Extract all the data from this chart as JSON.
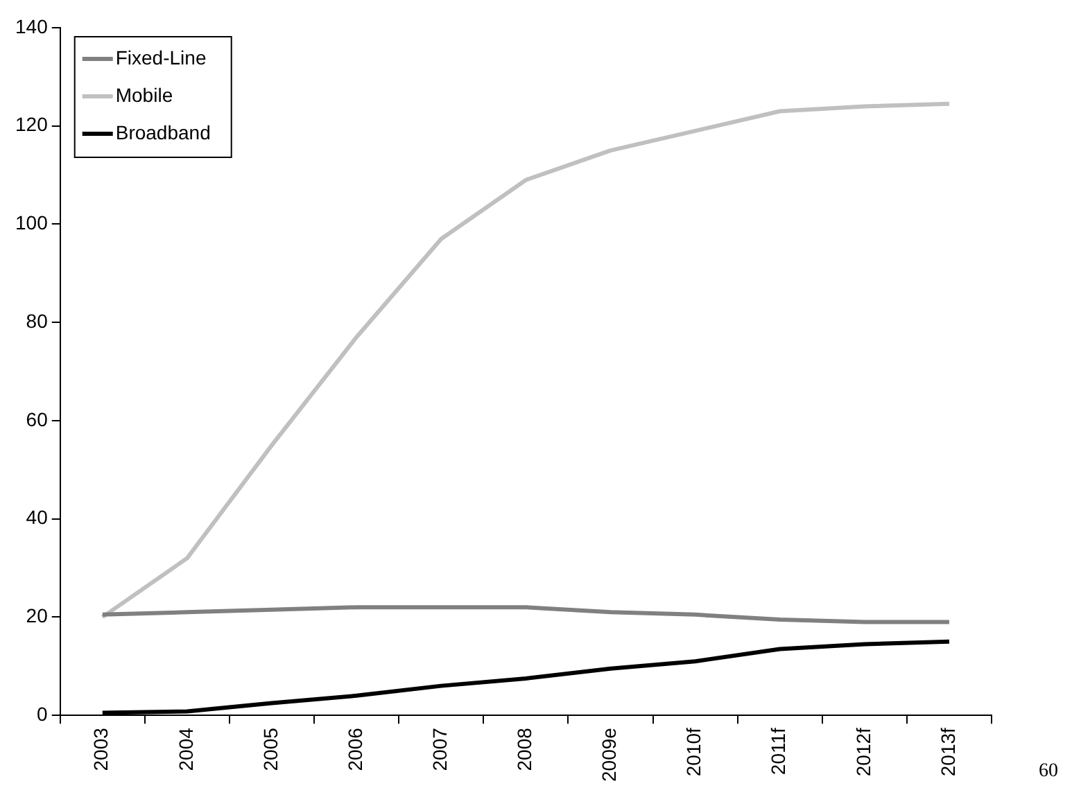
{
  "chart_data": {
    "type": "line",
    "categories": [
      "2003",
      "2004",
      "2005",
      "2006",
      "2007",
      "2008",
      "2009e",
      "2010f",
      "2011f",
      "2012f",
      "2013f"
    ],
    "series": [
      {
        "name": "Fixed-Line",
        "color": "#808080",
        "values": [
          20.5,
          21,
          21.5,
          22,
          22,
          22,
          21,
          20.5,
          19.5,
          19,
          19
        ]
      },
      {
        "name": "Mobile",
        "color": "#c0c0c0",
        "values": [
          20,
          32,
          55,
          77,
          97,
          109,
          115,
          119,
          123,
          124,
          124.5
        ]
      },
      {
        "name": "Broadband",
        "color": "#000000",
        "values": [
          0.5,
          0.8,
          2.5,
          4,
          6,
          7.5,
          9.5,
          11,
          13.5,
          14.5,
          15
        ]
      }
    ],
    "ylim": [
      0,
      140
    ],
    "yticks": [
      0,
      20,
      40,
      60,
      80,
      100,
      120,
      140
    ],
    "grid": false,
    "legend": "top left",
    "marker": "none",
    "line_style": "solid",
    "annotations": [
      "60"
    ]
  }
}
